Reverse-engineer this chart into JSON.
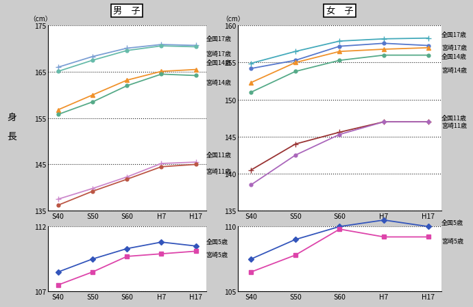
{
  "x_labels": [
    "S40",
    "S50",
    "S60",
    "H7",
    "H17"
  ],
  "x_vals": [
    0,
    1,
    2,
    3,
    4
  ],
  "boy_upper": {
    "ylim": [
      135,
      175
    ],
    "yticks": [
      135,
      145,
      155,
      165,
      175
    ],
    "series": [
      {
        "label": "全国17歳",
        "y": [
          166.0,
          168.3,
          170.1,
          170.9,
          170.7
        ],
        "color": "#7B9FD4",
        "marker": "+",
        "ms": 6,
        "lw": 1.3
      },
      {
        "label": "宮崎17歳",
        "y": [
          165.1,
          167.5,
          169.6,
          170.6,
          170.4
        ],
        "color": "#66BBAA",
        "marker": "o",
        "ms": 3.5,
        "lw": 1.3
      },
      {
        "label": "全国14歳",
        "y": [
          156.8,
          160.0,
          163.2,
          165.1,
          165.5
        ],
        "color": "#F0922B",
        "marker": "^",
        "ms": 5,
        "lw": 1.3
      },
      {
        "label": "宮崎14歳",
        "y": [
          155.8,
          158.5,
          162.0,
          164.5,
          164.2
        ],
        "color": "#55AA88",
        "marker": "o",
        "ms": 3.5,
        "lw": 1.3
      },
      {
        "label": "全国11歳",
        "y": [
          137.5,
          139.8,
          142.3,
          145.2,
          145.5
        ],
        "color": "#CC88CC",
        "marker": "+",
        "ms": 6,
        "lw": 1.3
      },
      {
        "label": "宮崎11歳",
        "y": [
          136.2,
          139.2,
          141.8,
          144.5,
          145.0
        ],
        "color": "#BB5544",
        "marker": "o",
        "ms": 3.5,
        "lw": 1.3
      }
    ]
  },
  "boy_lower": {
    "ylim": [
      107,
      112
    ],
    "yticks": [
      107,
      112
    ],
    "series": [
      {
        "label": "全国5歳",
        "y": [
          108.5,
          109.5,
          110.3,
          110.8,
          110.5
        ],
        "color": "#3355BB",
        "marker": "D",
        "ms": 4,
        "lw": 1.3
      },
      {
        "label": "宮崎5歳",
        "y": [
          107.5,
          108.5,
          109.7,
          109.9,
          110.1
        ],
        "color": "#DD44AA",
        "marker": "s",
        "ms": 4,
        "lw": 1.3
      }
    ]
  },
  "girl_upper": {
    "ylim": [
      135,
      160
    ],
    "yticks": [
      135,
      140,
      145,
      150,
      155,
      160
    ],
    "series": [
      {
        "label": "全国17歳",
        "y": [
          154.9,
          156.5,
          157.9,
          158.2,
          158.3
        ],
        "color": "#44AABB",
        "marker": "+",
        "ms": 6,
        "lw": 1.3
      },
      {
        "label": "宮崎17歳",
        "y": [
          154.2,
          155.3,
          157.2,
          157.6,
          157.3
        ],
        "color": "#5577CC",
        "marker": "o",
        "ms": 3.5,
        "lw": 1.3
      },
      {
        "label": "全国14歳",
        "y": [
          152.3,
          155.0,
          156.5,
          156.8,
          157.0
        ],
        "color": "#F0922B",
        "marker": "^",
        "ms": 5,
        "lw": 1.3
      },
      {
        "label": "宮崎14歳",
        "y": [
          151.0,
          153.8,
          155.3,
          156.0,
          156.0
        ],
        "color": "#55AA88",
        "marker": "o",
        "ms": 3.5,
        "lw": 1.3
      },
      {
        "label": "全国11歳",
        "y": [
          140.5,
          144.0,
          145.6,
          147.0,
          147.0
        ],
        "color": "#993333",
        "marker": "+",
        "ms": 6,
        "lw": 1.3
      },
      {
        "label": "宮崎11歳",
        "y": [
          138.5,
          142.5,
          145.3,
          147.0,
          147.0
        ],
        "color": "#AA66BB",
        "marker": "o",
        "ms": 3.5,
        "lw": 1.3
      }
    ]
  },
  "girl_lower": {
    "ylim": [
      105,
      110
    ],
    "yticks": [
      105,
      110
    ],
    "series": [
      {
        "label": "全国5歳",
        "y": [
          107.5,
          109.0,
          110.0,
          110.5,
          110.0
        ],
        "color": "#3355BB",
        "marker": "D",
        "ms": 4,
        "lw": 1.3
      },
      {
        "label": "宮崎5歳",
        "y": [
          106.5,
          107.8,
          109.8,
          109.2,
          109.2
        ],
        "color": "#DD44AA",
        "marker": "s",
        "ms": 4,
        "lw": 1.3
      }
    ]
  },
  "bg_color": "#CCCCCC",
  "plot_bg": "#FFFFFF",
  "title_boy": "男　子",
  "title_girl": "女　子",
  "ylabel": "身\n長",
  "unit": "（cm）"
}
